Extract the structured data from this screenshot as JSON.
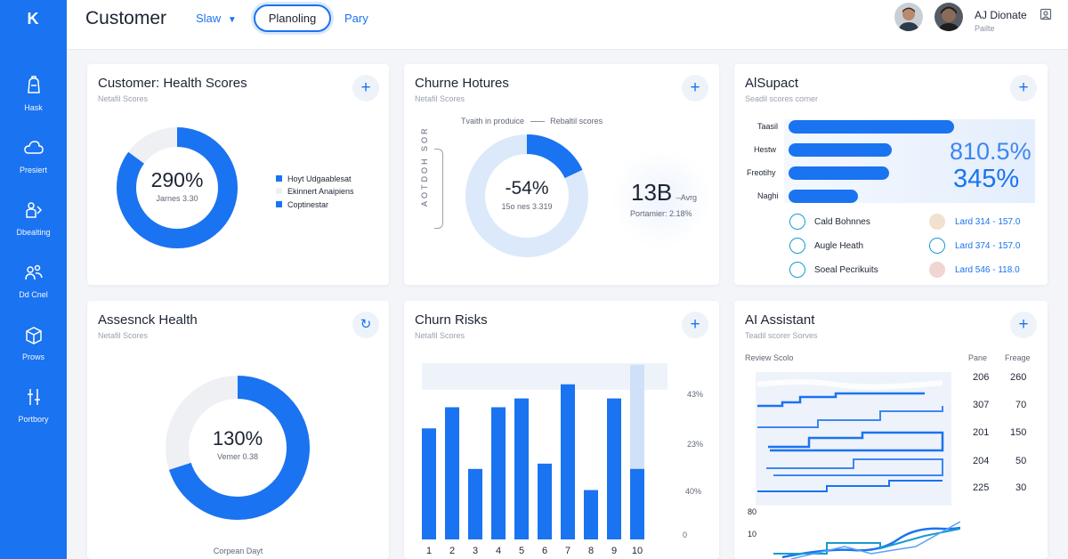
{
  "colors": {
    "accent": "#1a73f0",
    "accent_light": "#dbe8fc",
    "sidebar": "#1a73f0"
  },
  "sidebar": {
    "logo": "K",
    "items": [
      {
        "label": "Hask",
        "icon": "backpack-icon"
      },
      {
        "label": "Presiert",
        "icon": "cloud-icon"
      },
      {
        "label": "Dbealting",
        "icon": "hands-icon"
      },
      {
        "label": "Dd Cnel",
        "icon": "people-icon"
      },
      {
        "label": "Prows",
        "icon": "box-icon"
      },
      {
        "label": "Portbory",
        "icon": "sliders-icon"
      }
    ]
  },
  "header": {
    "title": "Customer",
    "dropdown": "Slaw",
    "pill": "Planoling",
    "link": "Pary",
    "user_name": "AJ Dionate",
    "user_sub": "Pailte"
  },
  "health": {
    "title": "Customer: Health Scores",
    "subtitle": "Netafil Scores",
    "value": "290%",
    "caption": "Jarnes 3.30",
    "fill_fraction": 0.85,
    "legend": [
      "Hoyt Udgaablesat",
      "Ekinnert Anaipiens",
      "Coptinestar"
    ]
  },
  "churn_hot": {
    "title": "Churne Hotures",
    "subtitle": "Netafil Scores",
    "legend_a": "Tvaith in produice",
    "legend_b": "Rebaltil scores",
    "axis_label": "AOTDOH SOR",
    "value": "-54%",
    "caption": "15o nes 3.319",
    "fill_fraction": 0.18,
    "stat_value": "13B",
    "stat_suffix": "–Avrg",
    "stat_caption": "Portamier: 2.18%"
  },
  "ai_support": {
    "title": "AlSupact",
    "subtitle": "Seadil scores corner",
    "bars": [
      {
        "label": "Taasil",
        "value": 0.69
      },
      {
        "label": "Hestw",
        "value": 0.43
      },
      {
        "label": "Freotihy",
        "value": 0.42
      },
      {
        "label": "Naghi",
        "value": 0.29
      }
    ],
    "big_a": "810.5%",
    "big_b": "345%",
    "items_left": [
      "Cald Bohnnes",
      "Augle Heath",
      "Soeal Pecrikuits"
    ],
    "items_right": [
      "Lard 314 - 157.0",
      "Lard 374 - 157.0",
      "Lard 546 - 118.0"
    ]
  },
  "assess": {
    "title": "Assesnck Health",
    "subtitle": "Netafil Scores",
    "value": "130%",
    "caption": "Vemer 0.38",
    "fill_fraction": 0.7,
    "footer": "Corpean Dayt"
  },
  "churn_risks": {
    "title": "Churn Risks",
    "subtitle": "Netafil Scores",
    "y_labels": [
      "43%",
      "23%",
      "40%",
      "0"
    ]
  },
  "assistant": {
    "title": "AI Assistant",
    "subtitle": "Teadil scorer Sorves",
    "table_label": "Review Scolo",
    "col_a": "Pane",
    "col_b": "Freage",
    "rows": [
      [
        "206",
        "260"
      ],
      [
        "307",
        "70"
      ],
      [
        "201",
        "150"
      ],
      [
        "204",
        "50"
      ],
      [
        "225",
        "30"
      ]
    ],
    "axis_labels": [
      "80",
      "10"
    ]
  },
  "chart_data": {
    "type": "bar",
    "categories": [
      "1",
      "2",
      "3",
      "4",
      "5",
      "6",
      "7",
      "8",
      "9",
      "10"
    ],
    "series": [
      {
        "values": [
          63,
          75,
          40,
          75,
          80,
          43,
          88,
          28,
          80,
          40
        ]
      },
      {
        "values": [
          0,
          0,
          0,
          0,
          0,
          0,
          0,
          0,
          0,
          88
        ]
      }
    ],
    "ylim": [
      0,
      100
    ]
  }
}
